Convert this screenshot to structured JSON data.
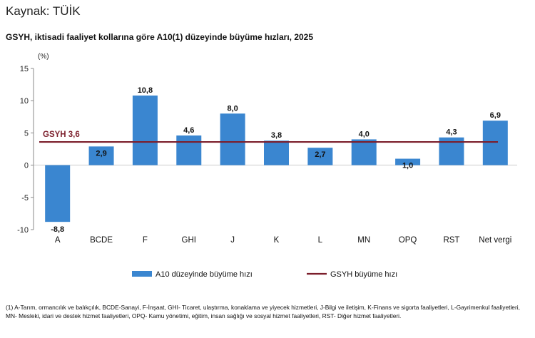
{
  "source": "Kaynak: TÜİK",
  "chart_data": {
    "type": "bar",
    "title": "GSYH, iktisadi faaliyet kollarına göre A10(1) düzeyinde büyüme hızları, 2025",
    "ylabel": "(%)",
    "xlabel": "",
    "ylim": [
      -10,
      15
    ],
    "yticks": [
      "15",
      "10",
      "5",
      "0",
      "-5",
      "-10"
    ],
    "categories": [
      "A",
      "BCDE",
      "F",
      "GHI",
      "J",
      "K",
      "L",
      "MN",
      "OPQ",
      "RST",
      "Net vergi"
    ],
    "series": [
      {
        "name": "A10 düzeyinde büyüme hızı",
        "values": [
          -8.8,
          2.9,
          10.8,
          4.6,
          8.0,
          3.8,
          2.7,
          4.0,
          1.0,
          4.3,
          6.9
        ],
        "labels": [
          "-8,8",
          "2,9",
          "10,8",
          "4,6",
          "8,0",
          "3,8",
          "2,7",
          "4,0",
          "1,0",
          "4,3",
          "6,9"
        ],
        "color": "#3a86d0"
      },
      {
        "name": "GSYH büyüme hızı",
        "type": "line",
        "value": 3.6,
        "label": "GSYH 3,6",
        "color": "#7b1e2b"
      }
    ],
    "grid": false,
    "legend_position": "bottom"
  },
  "footnote": "(1) A-Tarım, ormancılık ve balıkçılık, BCDE-Sanayi, F-İnşaat, GHI- Ticaret, ulaştırma, konaklama ve yiyecek hizmetleri, J-Bilgi ve iletişim, K-Finans ve sigorta faaliyetleri, L-Gayrimenkul faaliyetleri, MN- Mesleki, idari ve destek hizmet faaliyetleri, OPQ- Kamu yönetimi, eğitim, insan sağlığı ve sosyal hizmet faaliyetleri, RST- Diğer hizmet faaliyetleri."
}
